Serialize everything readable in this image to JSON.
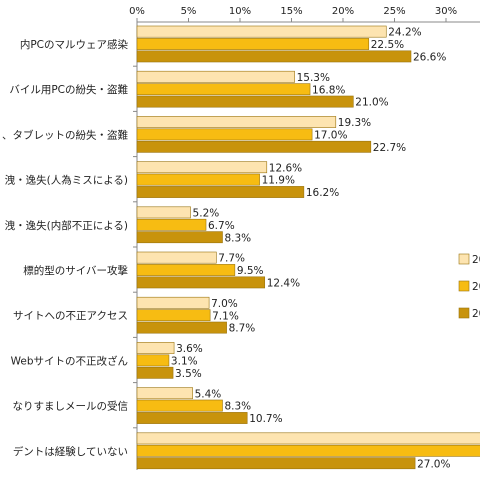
{
  "chart_data": {
    "type": "bar",
    "orientation": "horizontal",
    "categories": [
      "内PCのマルウェア感染",
      "バイル用PCの紛失・盗難",
      "、タブレットの紛失・盗難",
      "洩・逸失(人為ミスによる)",
      "洩・逸失(内部不正による)",
      "標的型のサイバー攻撃",
      "サイトへの不正アクセス",
      "Webサイトの不正改ざん",
      "なりすましメールの受信",
      "デントは経験していない"
    ],
    "series": [
      {
        "name": "20",
        "color": "#fde4b0",
        "values": [
          24.2,
          15.3,
          19.3,
          12.6,
          5.2,
          7.7,
          7.0,
          3.6,
          5.4,
          33.5
        ],
        "labels": [
          "24.2%",
          "15.3%",
          "19.3%",
          "12.6%",
          "5.2%",
          "7.7%",
          "7.0%",
          "3.6%",
          "5.4%",
          ""
        ]
      },
      {
        "name": "20",
        "color": "#f7bc12",
        "values": [
          22.5,
          16.8,
          17.0,
          11.9,
          6.7,
          9.5,
          7.1,
          3.1,
          8.3,
          33.5
        ],
        "labels": [
          "22.5%",
          "16.8%",
          "17.0%",
          "11.9%",
          "6.7%",
          "9.5%",
          "7.1%",
          "3.1%",
          "8.3%",
          ""
        ]
      },
      {
        "name": "20",
        "color": "#c8930c",
        "values": [
          26.6,
          21.0,
          22.7,
          16.2,
          8.3,
          12.4,
          8.7,
          3.5,
          10.7,
          27.0
        ],
        "labels": [
          "26.6%",
          "21.0%",
          "22.7%",
          "16.2%",
          "8.3%",
          "12.4%",
          "8.7%",
          "3.5%",
          "10.7%",
          "27.0%"
        ]
      }
    ],
    "xticks": [
      "0%",
      "5%",
      "10%",
      "15%",
      "20%",
      "25%",
      "30%"
    ],
    "tick_values": [
      0,
      5,
      10,
      15,
      20,
      25,
      30
    ],
    "xlim": [
      0,
      32
    ],
    "grid": false,
    "legend_position": "right"
  }
}
